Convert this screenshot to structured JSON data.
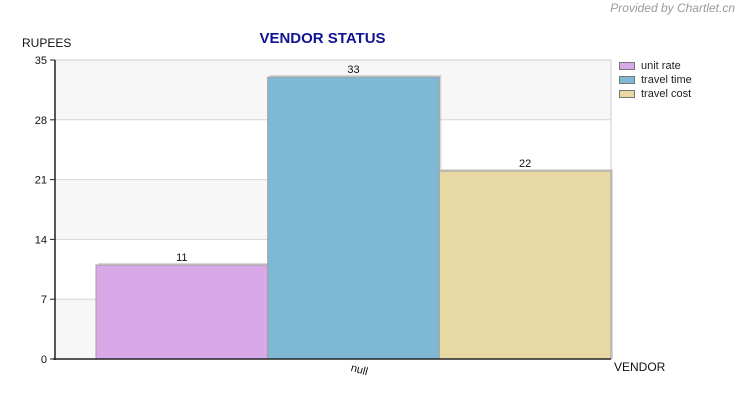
{
  "watermark": "Provided by Chartlet.cn",
  "chart_data": {
    "type": "bar",
    "title": "VENDOR STATUS",
    "xlabel": "VENDOR",
    "ylabel": "RUPEES",
    "categories": [
      "null"
    ],
    "series": [
      {
        "name": "unit rate",
        "values": [
          11
        ],
        "color": "#d8a8e8"
      },
      {
        "name": "travel time",
        "values": [
          33
        ],
        "color": "#7fb8d4"
      },
      {
        "name": "travel cost",
        "values": [
          22
        ],
        "color": "#e8d8a4"
      }
    ],
    "ylim": [
      0,
      35
    ],
    "yticks": [
      0,
      7,
      14,
      21,
      28,
      35
    ],
    "grid": true,
    "legend_position": "right",
    "band_colors": [
      "#f7f7f7",
      "#ffffff"
    ]
  }
}
